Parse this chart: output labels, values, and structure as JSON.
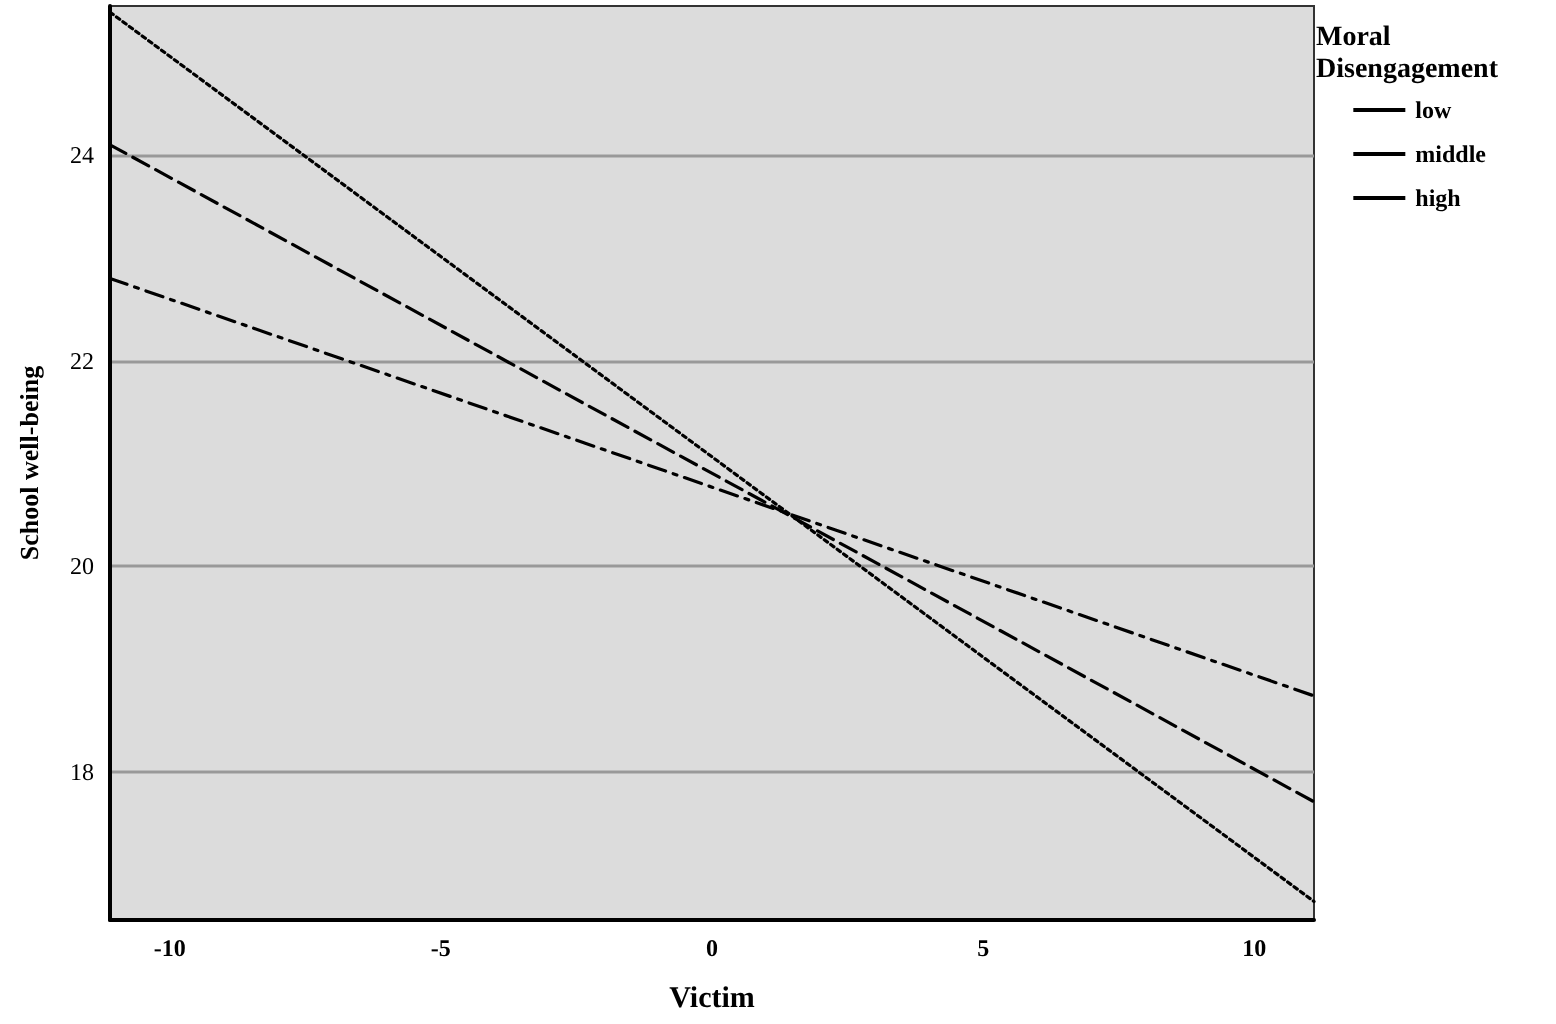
{
  "chart_data": {
    "type": "line",
    "xlabel": "Victim",
    "ylabel": "School well-being",
    "legend_title": "Moral Disengagement",
    "x": [
      -11.1,
      11.1
    ],
    "series": [
      {
        "name": "low",
        "color": "#000000",
        "values": [
          25.39,
          16.74
        ],
        "line_style": "dotted"
      },
      {
        "name": "middle",
        "color": "#000000",
        "values": [
          24.1,
          17.71
        ],
        "line_style": "dashed"
      },
      {
        "name": "high",
        "color": "#000000",
        "values": [
          22.8,
          18.74
        ],
        "line_style": "dashdot"
      }
    ],
    "xlim": [
      -11.1,
      11.1
    ],
    "xticks": [
      -10,
      -5,
      0,
      5,
      10
    ],
    "ylim": [
      16.56,
      25.45
    ],
    "yticks": [
      18,
      20,
      22,
      24
    ],
    "grid": "y",
    "legend": "top right",
    "marker": "none"
  }
}
